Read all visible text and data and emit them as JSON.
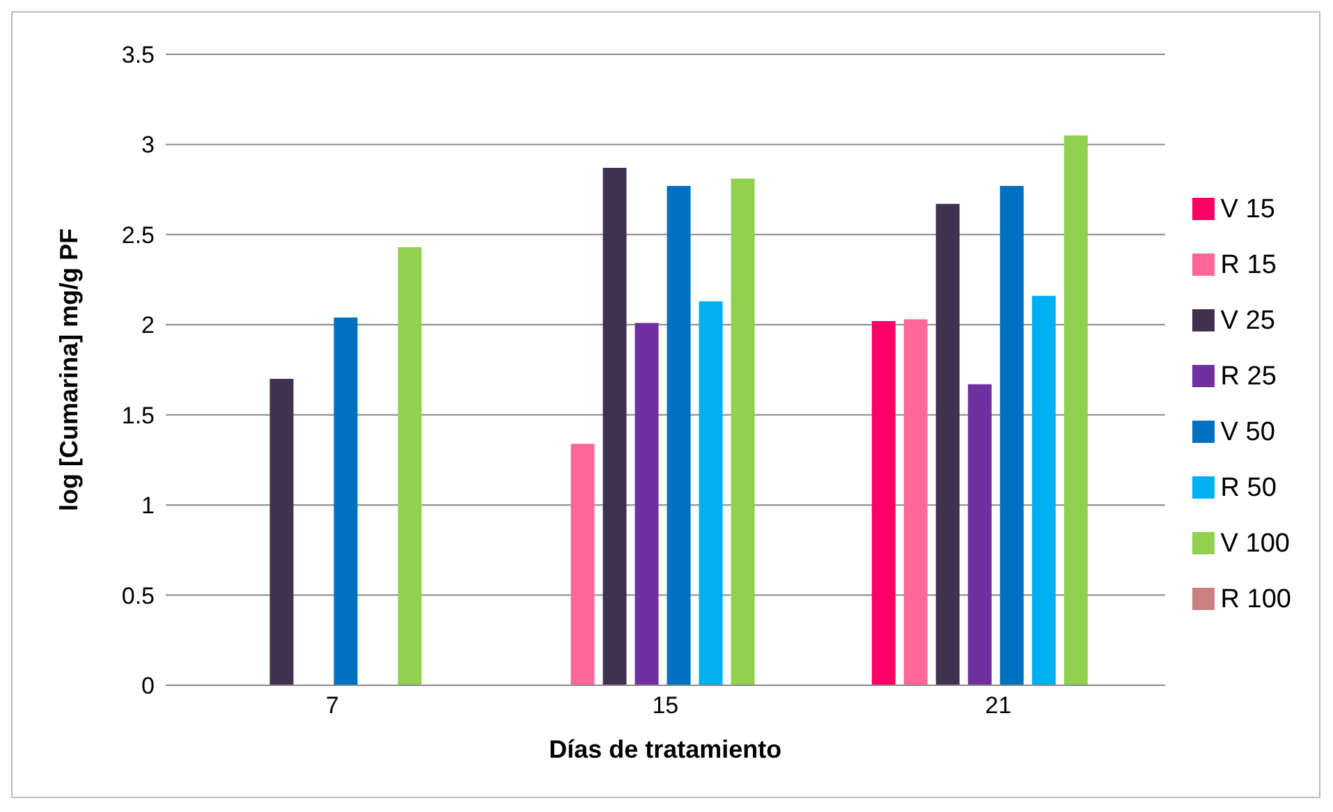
{
  "chart_data": {
    "type": "bar",
    "xlabel": "Días de tratamiento",
    "ylabel": "log [Cumarina] mg/g PF",
    "categories": [
      "7",
      "15",
      "21"
    ],
    "series": [
      {
        "name": "V 15",
        "color": "#ff0066",
        "values": [
          null,
          null,
          2.02
        ]
      },
      {
        "name": "R 15",
        "color": "#ff6699",
        "values": [
          null,
          1.34,
          2.03
        ]
      },
      {
        "name": "V 25",
        "color": "#403151",
        "values": [
          1.7,
          2.87,
          2.67
        ]
      },
      {
        "name": "R 25",
        "color": "#7030a0",
        "values": [
          null,
          2.01,
          1.67
        ]
      },
      {
        "name": "V 50",
        "color": "#0070c0",
        "values": [
          2.04,
          2.77,
          2.77
        ]
      },
      {
        "name": "R 50",
        "color": "#00b0f0",
        "values": [
          null,
          2.13,
          2.16
        ]
      },
      {
        "name": "V 100",
        "color": "#92d050",
        "values": [
          2.43,
          2.81,
          3.05
        ]
      },
      {
        "name": "R 100",
        "color": "#c98080",
        "values": [
          null,
          null,
          null
        ]
      }
    ],
    "ylim": [
      0,
      3.5
    ],
    "yticks": [
      0,
      0.5,
      1,
      1.5,
      2,
      2.5,
      3,
      3.5
    ],
    "grid": "y",
    "legend": "right"
  }
}
